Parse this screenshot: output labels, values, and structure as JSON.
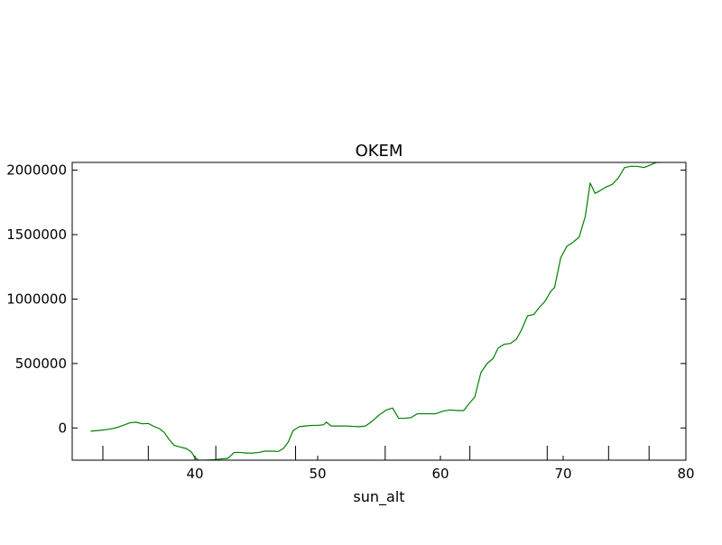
{
  "chart_data": {
    "type": "line",
    "title": "OKEM",
    "xlabel": "sun_alt",
    "ylabel": "",
    "xlim": [
      30,
      80
    ],
    "ylim": [
      -250000,
      2060000
    ],
    "xticks": [
      40,
      50,
      60,
      70,
      80
    ],
    "xtick_labels": [
      "40",
      "50",
      "60",
      "70",
      "80"
    ],
    "yticks": [
      0,
      500000,
      1000000,
      1500000,
      2000000
    ],
    "ytick_labels": [
      "0",
      "500000",
      "1000000",
      "1500000",
      "2000000"
    ],
    "top_tick_marks": [
      32.5,
      36.2,
      41.7,
      48.2,
      55.5,
      62.4,
      68.7,
      73.7,
      77.0
    ],
    "grid": false,
    "series": [
      {
        "color": "#008000",
        "x": [
          31.5,
          32.3,
          33.0,
          33.6,
          34.1,
          34.7,
          35.2,
          35.7,
          36.2,
          36.7,
          37.1,
          37.5,
          37.9,
          38.3,
          38.8,
          39.3,
          39.7,
          40.0,
          40.3,
          40.7,
          41.2,
          41.7,
          42.2,
          42.7,
          43.2,
          43.7,
          44.2,
          44.7,
          45.2,
          45.7,
          46.3,
          46.8,
          47.2,
          47.6,
          48.0,
          48.5,
          49.0,
          49.5,
          50.0,
          50.5,
          50.7,
          51.1,
          51.7,
          52.4,
          52.9,
          53.4,
          53.9,
          54.4,
          55.0,
          55.6,
          56.1,
          56.6,
          57.1,
          57.6,
          58.1,
          58.6,
          59.1,
          59.6,
          60.2,
          60.8,
          61.4,
          61.9,
          62.3,
          62.8,
          63.3,
          63.8,
          64.3,
          64.7,
          65.2,
          65.7,
          66.2,
          66.6,
          67.1,
          67.6,
          68.1,
          68.5,
          69.0,
          69.3,
          69.8,
          70.3,
          70.8,
          71.3,
          71.8,
          72.2,
          72.6,
          73.0,
          73.5,
          74.0,
          74.5,
          75.0,
          75.5,
          76.0,
          76.6,
          77.1,
          77.6,
          78.0
        ],
        "y": [
          -25000,
          -18000,
          -10000,
          2000,
          18000,
          40000,
          45000,
          32000,
          35000,
          10000,
          -5000,
          -35000,
          -90000,
          -135000,
          -148000,
          -160000,
          -185000,
          -230000,
          -250000,
          -250000,
          -248000,
          -245000,
          -240000,
          -235000,
          -190000,
          -190000,
          -195000,
          -195000,
          -190000,
          -180000,
          -180000,
          -182000,
          -160000,
          -110000,
          -20000,
          10000,
          15000,
          20000,
          20000,
          25000,
          45000,
          15000,
          15000,
          15000,
          12000,
          10000,
          15000,
          50000,
          100000,
          140000,
          155000,
          75000,
          75000,
          80000,
          110000,
          110000,
          110000,
          110000,
          130000,
          140000,
          135000,
          135000,
          185000,
          240000,
          430000,
          500000,
          540000,
          620000,
          650000,
          655000,
          690000,
          760000,
          870000,
          880000,
          940000,
          980000,
          1060000,
          1090000,
          1320000,
          1410000,
          1440000,
          1480000,
          1640000,
          1900000,
          1820000,
          1840000,
          1870000,
          1890000,
          1940000,
          2020000,
          2030000,
          2030000,
          2020000,
          2040000,
          2060000,
          2060000
        ]
      }
    ]
  }
}
